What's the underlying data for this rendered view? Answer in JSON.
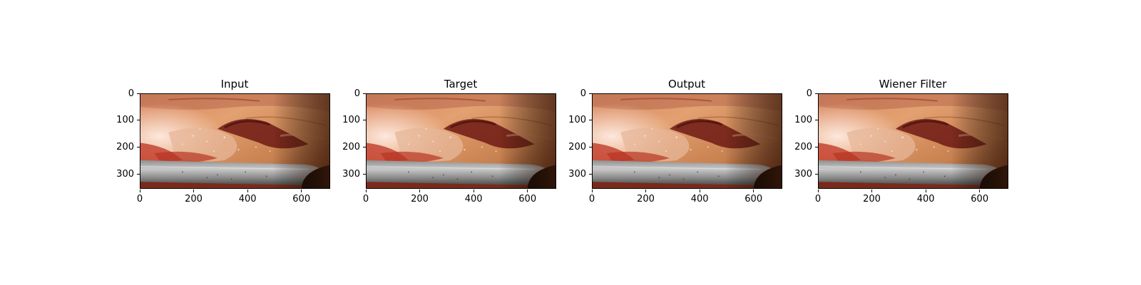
{
  "figure": {
    "panels": [
      {
        "title": "Input"
      },
      {
        "title": "Target"
      },
      {
        "title": "Output"
      },
      {
        "title": "Wiener Filter"
      }
    ],
    "y_ticks": [
      "0",
      "100",
      "200",
      "300"
    ],
    "x_ticks": [
      "0",
      "200",
      "400",
      "600"
    ],
    "x_range": [
      0,
      704
    ],
    "y_range": [
      0,
      352
    ]
  }
}
